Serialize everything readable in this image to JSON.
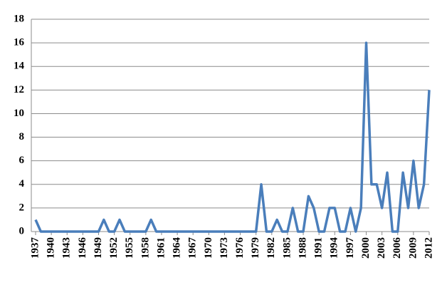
{
  "chart_data": {
    "type": "line",
    "x": [
      1937,
      1938,
      1939,
      1940,
      1941,
      1942,
      1943,
      1944,
      1945,
      1946,
      1947,
      1948,
      1949,
      1950,
      1951,
      1952,
      1953,
      1954,
      1955,
      1956,
      1957,
      1958,
      1959,
      1960,
      1961,
      1962,
      1963,
      1964,
      1965,
      1966,
      1967,
      1968,
      1969,
      1970,
      1971,
      1972,
      1973,
      1974,
      1975,
      1976,
      1977,
      1978,
      1979,
      1980,
      1981,
      1982,
      1983,
      1984,
      1985,
      1986,
      1987,
      1988,
      1989,
      1990,
      1991,
      1992,
      1993,
      1994,
      1995,
      1996,
      1997,
      1998,
      1999,
      2000,
      2001,
      2002,
      2003,
      2004,
      2005,
      2006,
      2007,
      2008,
      2009,
      2010,
      2011,
      2012
    ],
    "values": [
      1,
      0,
      0,
      0,
      0,
      0,
      0,
      0,
      0,
      0,
      0,
      0,
      0,
      1,
      0,
      0,
      1,
      0,
      0,
      0,
      0,
      0,
      1,
      0,
      0,
      0,
      0,
      0,
      0,
      0,
      0,
      0,
      0,
      0,
      0,
      0,
      0,
      0,
      0,
      0,
      0,
      0,
      0,
      4,
      0,
      0,
      1,
      0,
      0,
      2,
      0,
      0,
      3,
      2,
      0,
      0,
      2,
      2,
      0,
      0,
      2,
      0,
      2,
      16,
      4,
      4,
      2,
      5,
      0,
      0,
      5,
      2,
      6,
      2,
      4,
      12
    ],
    "color": "#4a7ebb",
    "xlim": [
      1937,
      2012
    ],
    "xticks": [
      1937,
      1940,
      1943,
      1946,
      1949,
      1952,
      1955,
      1958,
      1961,
      1964,
      1967,
      1970,
      1973,
      1976,
      1979,
      1982,
      1985,
      1988,
      1991,
      1994,
      1997,
      2000,
      2003,
      2006,
      2009,
      2012
    ],
    "ylim": [
      0,
      18
    ],
    "yticks": [
      0,
      2,
      4,
      6,
      8,
      10,
      12,
      14,
      16,
      18
    ],
    "grid": true
  }
}
